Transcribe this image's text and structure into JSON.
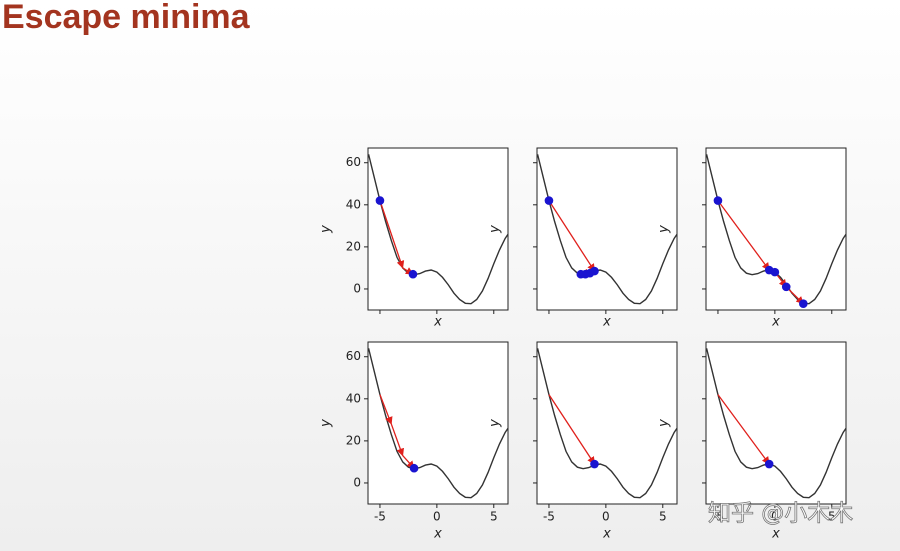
{
  "title": "Escape minima",
  "watermark": "知乎 @小木木",
  "chart_data": [
    {
      "type": "line",
      "xlabel": "x",
      "ylabel": "y",
      "xlim": [
        -6.05,
        6.25
      ],
      "ylim": [
        -10,
        67
      ],
      "xticks": [
        -5,
        0,
        5
      ],
      "yticks": [
        0,
        20,
        40,
        60
      ],
      "curve": {
        "color": "#333333",
        "x": [
          -6,
          -5.5,
          -5,
          -4.5,
          -4,
          -3.5,
          -3,
          -2.5,
          -2,
          -1.5,
          -1,
          -0.5,
          0,
          0.5,
          1,
          1.5,
          2,
          2.5,
          3,
          3.5,
          4,
          4.5,
          5,
          5.5,
          6,
          6.25
        ],
        "y": [
          64,
          53,
          42,
          32,
          23,
          15,
          10,
          7.5,
          6.8,
          7.3,
          8.5,
          9,
          8,
          5.5,
          2,
          -2,
          -5,
          -6.8,
          -7,
          -5,
          -1,
          5,
          12,
          18.5,
          24,
          26
        ]
      },
      "steps": {
        "color": "#e0201c",
        "x": [
          -5,
          -3,
          -2.1
        ],
        "y": [
          42,
          10,
          7
        ]
      },
      "points": {
        "color": "#1a14d0",
        "x": [
          -5,
          -2.1
        ],
        "y": [
          42,
          7
        ]
      }
    },
    {
      "type": "line",
      "xlabel": "x",
      "ylabel": "y",
      "xlim": [
        -6.05,
        6.25
      ],
      "ylim": [
        -10,
        67
      ],
      "xticks": [
        -5,
        0,
        5
      ],
      "yticks": [
        0,
        20,
        40,
        60
      ],
      "curve": {
        "color": "#333333",
        "x": [
          -6,
          -5.5,
          -5,
          -4.5,
          -4,
          -3.5,
          -3,
          -2.5,
          -2,
          -1.5,
          -1,
          -0.5,
          0,
          0.5,
          1,
          1.5,
          2,
          2.5,
          3,
          3.5,
          4,
          4.5,
          5,
          5.5,
          6,
          6.25
        ],
        "y": [
          64,
          53,
          42,
          32,
          23,
          15,
          10,
          7.5,
          6.8,
          7.3,
          8.5,
          9,
          8,
          5.5,
          2,
          -2,
          -5,
          -6.8,
          -7,
          -5,
          -1,
          5,
          12,
          18.5,
          24,
          26
        ]
      },
      "steps": {
        "color": "#e0201c",
        "x": [
          -5,
          -1,
          -2.2
        ],
        "y": [
          42,
          8.5,
          7
        ]
      },
      "points": {
        "color": "#1a14d0",
        "x": [
          -5,
          -2.2,
          -1.8,
          -1.4,
          -1
        ],
        "y": [
          42,
          7,
          7,
          7.5,
          8.5
        ]
      }
    },
    {
      "type": "line",
      "xlabel": "x",
      "ylabel": "y",
      "xlim": [
        -6.05,
        6.25
      ],
      "ylim": [
        -10,
        67
      ],
      "xticks": [
        -5,
        0,
        5
      ],
      "yticks": [
        0,
        20,
        40,
        60
      ],
      "curve": {
        "color": "#333333",
        "x": [
          -6,
          -5.5,
          -5,
          -4.5,
          -4,
          -3.5,
          -3,
          -2.5,
          -2,
          -1.5,
          -1,
          -0.5,
          0,
          0.5,
          1,
          1.5,
          2,
          2.5,
          3,
          3.5,
          4,
          4.5,
          5,
          5.5,
          6,
          6.25
        ],
        "y": [
          64,
          53,
          42,
          32,
          23,
          15,
          10,
          7.5,
          6.8,
          7.3,
          8.5,
          9,
          8,
          5.5,
          2,
          -2,
          -5,
          -6.8,
          -7,
          -5,
          -1,
          5,
          12,
          18.5,
          24,
          26
        ]
      },
      "steps": {
        "color": "#e0201c",
        "x": [
          -5,
          -0.5,
          0,
          1,
          2.5
        ],
        "y": [
          42,
          9,
          8,
          1,
          -7
        ]
      },
      "points": {
        "color": "#1a14d0",
        "x": [
          -5,
          -0.5,
          0,
          1,
          2.5
        ],
        "y": [
          42,
          9,
          8,
          1,
          -7
        ]
      }
    },
    {
      "type": "line",
      "xlabel": "x",
      "ylabel": "y",
      "xlim": [
        -6.05,
        6.25
      ],
      "ylim": [
        -10,
        67
      ],
      "xticks": [
        -5,
        0,
        5
      ],
      "yticks": [
        0,
        20,
        40,
        60
      ],
      "curve": {
        "color": "#333333",
        "x": [
          -6,
          -5.5,
          -5,
          -4.5,
          -4,
          -3.5,
          -3,
          -2.5,
          -2,
          -1.5,
          -1,
          -0.5,
          0,
          0.5,
          1,
          1.5,
          2,
          2.5,
          3,
          3.5,
          4,
          4.5,
          5,
          5.5,
          6,
          6.25
        ],
        "y": [
          64,
          53,
          42,
          32,
          23,
          15,
          10,
          7.5,
          6.8,
          7.3,
          8.5,
          9,
          8,
          5.5,
          2,
          -2,
          -5,
          -6.8,
          -7,
          -5,
          -1,
          5,
          12,
          18.5,
          24,
          26
        ]
      },
      "steps": {
        "color": "#e0201c",
        "x": [
          -5,
          -4,
          -3,
          -2
        ],
        "y": [
          42,
          28,
          13,
          7
        ]
      },
      "points": {
        "color": "#1a14d0",
        "x": [
          -2
        ],
        "y": [
          7
        ]
      }
    },
    {
      "type": "line",
      "xlabel": "x",
      "ylabel": "y",
      "xlim": [
        -6.05,
        6.25
      ],
      "ylim": [
        -10,
        67
      ],
      "xticks": [
        -5,
        0,
        5
      ],
      "yticks": [
        0,
        20,
        40,
        60
      ],
      "curve": {
        "color": "#333333",
        "x": [
          -6,
          -5.5,
          -5,
          -4.5,
          -4,
          -3.5,
          -3,
          -2.5,
          -2,
          -1.5,
          -1,
          -0.5,
          0,
          0.5,
          1,
          1.5,
          2,
          2.5,
          3,
          3.5,
          4,
          4.5,
          5,
          5.5,
          6,
          6.25
        ],
        "y": [
          64,
          53,
          42,
          32,
          23,
          15,
          10,
          7.5,
          6.8,
          7.3,
          8.5,
          9,
          8,
          5.5,
          2,
          -2,
          -5,
          -6.8,
          -7,
          -5,
          -1,
          5,
          12,
          18.5,
          24,
          26
        ]
      },
      "steps": {
        "color": "#e0201c",
        "x": [
          -5,
          -1
        ],
        "y": [
          42,
          9
        ]
      },
      "points": {
        "color": "#1a14d0",
        "x": [
          -1
        ],
        "y": [
          9
        ]
      }
    },
    {
      "type": "line",
      "xlabel": "x",
      "ylabel": "y",
      "xlim": [
        -6.05,
        6.25
      ],
      "ylim": [
        -10,
        67
      ],
      "xticks": [
        -5,
        0,
        5
      ],
      "yticks": [
        0,
        20,
        40,
        60
      ],
      "curve": {
        "color": "#333333",
        "x": [
          -6,
          -5.5,
          -5,
          -4.5,
          -4,
          -3.5,
          -3,
          -2.5,
          -2,
          -1.5,
          -1,
          -0.5,
          0,
          0.5,
          1,
          1.5,
          2,
          2.5,
          3,
          3.5,
          4,
          4.5,
          5,
          5.5,
          6,
          6.25
        ],
        "y": [
          64,
          53,
          42,
          32,
          23,
          15,
          10,
          7.5,
          6.8,
          7.3,
          8.5,
          9,
          8,
          5.5,
          2,
          -2,
          -5,
          -6.8,
          -7,
          -5,
          -1,
          5,
          12,
          18.5,
          24,
          26
        ]
      },
      "steps": {
        "color": "#e0201c",
        "x": [
          -5,
          -0.5
        ],
        "y": [
          42,
          9
        ]
      },
      "points": {
        "color": "#1a14d0",
        "x": [
          -0.5
        ],
        "y": [
          9
        ]
      }
    }
  ]
}
